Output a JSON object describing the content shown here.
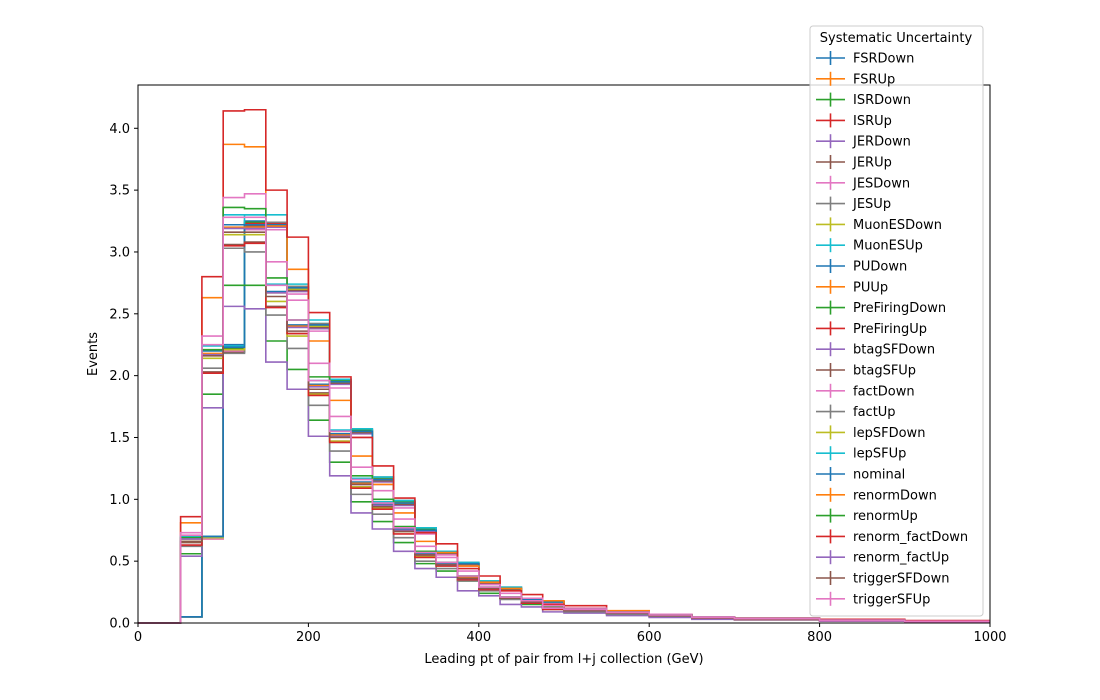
{
  "chart_data": {
    "type": "line",
    "title": "",
    "xlabel": "Leading pt of pair from l+j collection (GeV)",
    "ylabel": "Events",
    "xlim": [
      0,
      1000
    ],
    "ylim": [
      0,
      4.35
    ],
    "x_ticks": [
      0,
      200,
      400,
      600,
      800,
      1000
    ],
    "x_tick_labels": [
      "0",
      "200",
      "400",
      "600",
      "800",
      "1000"
    ],
    "y_ticks": [
      0.0,
      0.5,
      1.0,
      1.5,
      2.0,
      2.5,
      3.0,
      3.5,
      4.0
    ],
    "y_tick_labels": [
      "0.0",
      "0.5",
      "1.0",
      "1.5",
      "2.0",
      "2.5",
      "3.0",
      "3.5",
      "4.0"
    ],
    "grid": false,
    "drawstyle": "steps-histogram",
    "bin_edges": [
      0,
      25,
      50,
      75,
      100,
      125,
      150,
      175,
      200,
      225,
      250,
      275,
      300,
      325,
      350,
      375,
      400,
      425,
      450,
      475,
      500,
      550,
      600,
      650,
      700,
      800,
      900,
      1000
    ],
    "legend": {
      "title": "Systematic Uncertainty",
      "location": "upper right"
    },
    "series": [
      {
        "name": "FSRDown",
        "color": "#1f77b4",
        "values": [
          0,
          0,
          0.05,
          0.7,
          2.25,
          3.25,
          3.22,
          2.72,
          2.42,
          1.96,
          1.56,
          1.17,
          0.98,
          0.76,
          0.57,
          0.48,
          0.33,
          0.28,
          0.19,
          0.17,
          0.11,
          0.09,
          0.065,
          0.045,
          0.035,
          0.02,
          0.01
        ]
      },
      {
        "name": "FSRUp",
        "color": "#ff7f0e",
        "values": [
          0,
          0,
          0.05,
          0.68,
          2.2,
          3.22,
          3.22,
          2.7,
          2.4,
          1.95,
          1.55,
          1.16,
          0.96,
          0.75,
          0.57,
          0.48,
          0.33,
          0.28,
          0.19,
          0.17,
          0.11,
          0.09,
          0.065,
          0.045,
          0.035,
          0.02,
          0.01
        ]
      },
      {
        "name": "ISRDown",
        "color": "#2ca02c",
        "values": [
          0,
          0,
          0.05,
          0.7,
          2.22,
          3.24,
          3.24,
          2.72,
          2.42,
          1.96,
          1.56,
          1.17,
          0.98,
          0.76,
          0.57,
          0.48,
          0.33,
          0.28,
          0.19,
          0.17,
          0.11,
          0.09,
          0.065,
          0.045,
          0.035,
          0.02,
          0.01
        ]
      },
      {
        "name": "ISRUp",
        "color": "#d62728",
        "values": [
          0,
          0,
          0.05,
          0.69,
          2.21,
          3.23,
          3.23,
          2.71,
          2.41,
          1.95,
          1.55,
          1.16,
          0.97,
          0.75,
          0.57,
          0.48,
          0.33,
          0.28,
          0.19,
          0.17,
          0.11,
          0.09,
          0.065,
          0.045,
          0.035,
          0.02,
          0.01
        ]
      },
      {
        "name": "JERDown",
        "color": "#9467bd",
        "values": [
          0,
          0,
          0.05,
          0.69,
          2.2,
          3.2,
          3.2,
          2.68,
          2.38,
          1.93,
          1.53,
          1.14,
          0.95,
          0.74,
          0.56,
          0.47,
          0.32,
          0.27,
          0.18,
          0.16,
          0.1,
          0.085,
          0.06,
          0.045,
          0.035,
          0.02,
          0.01
        ]
      },
      {
        "name": "JERUp",
        "color": "#8c564b",
        "values": [
          0,
          0,
          0.05,
          0.7,
          2.19,
          3.21,
          3.21,
          2.69,
          2.39,
          1.94,
          1.54,
          1.15,
          0.96,
          0.75,
          0.56,
          0.47,
          0.32,
          0.27,
          0.18,
          0.16,
          0.1,
          0.085,
          0.06,
          0.045,
          0.035,
          0.02,
          0.01
        ]
      },
      {
        "name": "JESDown",
        "color": "#e377c2",
        "values": [
          0,
          0,
          0.05,
          0.68,
          2.2,
          3.18,
          3.18,
          2.66,
          2.36,
          1.9,
          1.5,
          1.12,
          0.93,
          0.72,
          0.55,
          0.46,
          0.31,
          0.26,
          0.18,
          0.16,
          0.1,
          0.08,
          0.06,
          0.04,
          0.03,
          0.02,
          0.01
        ]
      },
      {
        "name": "JESUp",
        "color": "#7f7f7f",
        "values": [
          0,
          0,
          0.05,
          0.7,
          2.18,
          3.22,
          3.24,
          2.72,
          2.42,
          1.97,
          1.57,
          1.18,
          0.99,
          0.77,
          0.58,
          0.49,
          0.34,
          0.29,
          0.19,
          0.17,
          0.11,
          0.09,
          0.065,
          0.045,
          0.035,
          0.02,
          0.01
        ]
      },
      {
        "name": "MuonESDown",
        "color": "#bcbd22",
        "values": [
          0,
          0,
          0.05,
          0.69,
          2.21,
          3.22,
          3.22,
          2.7,
          2.4,
          1.95,
          1.55,
          1.16,
          0.97,
          0.75,
          0.57,
          0.48,
          0.33,
          0.28,
          0.19,
          0.17,
          0.11,
          0.09,
          0.065,
          0.045,
          0.035,
          0.02,
          0.01
        ]
      },
      {
        "name": "MuonESUp",
        "color": "#17becf",
        "values": [
          0,
          0,
          0.05,
          0.7,
          2.24,
          3.3,
          3.3,
          2.74,
          2.45,
          1.97,
          1.57,
          1.18,
          0.99,
          0.77,
          0.58,
          0.49,
          0.34,
          0.29,
          0.19,
          0.17,
          0.11,
          0.09,
          0.065,
          0.045,
          0.035,
          0.02,
          0.01
        ]
      },
      {
        "name": "PUDown",
        "color": "#1f77b4",
        "values": [
          0,
          0,
          0.05,
          0.7,
          2.23,
          3.22,
          3.22,
          2.71,
          2.41,
          1.95,
          1.55,
          1.16,
          0.97,
          0.75,
          0.57,
          0.48,
          0.33,
          0.28,
          0.19,
          0.17,
          0.11,
          0.09,
          0.065,
          0.045,
          0.035,
          0.02,
          0.01
        ]
      },
      {
        "name": "PUUp",
        "color": "#ff7f0e",
        "values": [
          0,
          0,
          0.81,
          2.63,
          3.87,
          3.85,
          3.21,
          2.86,
          2.28,
          1.8,
          1.35,
          1.12,
          0.89,
          0.66,
          0.57,
          0.46,
          0.33,
          0.28,
          0.2,
          0.18,
          0.12,
          0.1,
          0.07,
          0.05,
          0.04,
          0.025,
          0.015
        ]
      },
      {
        "name": "PreFiringDown",
        "color": "#2ca02c",
        "values": [
          0,
          0,
          0.56,
          1.85,
          2.73,
          2.73,
          2.28,
          2.05,
          1.64,
          1.3,
          0.98,
          0.82,
          0.65,
          0.48,
          0.42,
          0.34,
          0.24,
          0.21,
          0.15,
          0.13,
          0.09,
          0.07,
          0.05,
          0.04,
          0.03,
          0.02,
          0.01
        ]
      },
      {
        "name": "PreFiringUp",
        "color": "#d62728",
        "values": [
          0,
          0,
          0.86,
          2.8,
          4.14,
          4.15,
          3.5,
          3.12,
          2.51,
          1.99,
          1.5,
          1.27,
          1.01,
          0.73,
          0.64,
          0.44,
          0.38,
          0.26,
          0.23,
          0.15,
          0.14,
          0.09,
          0.07,
          0.05,
          0.04,
          0.03,
          0.02
        ]
      },
      {
        "name": "btagSFDown",
        "color": "#9467bd",
        "values": [
          0,
          0,
          0.54,
          1.74,
          2.56,
          2.54,
          2.11,
          1.89,
          1.51,
          1.19,
          0.89,
          0.76,
          0.58,
          0.44,
          0.37,
          0.26,
          0.22,
          0.15,
          0.13,
          0.09,
          0.08,
          0.06,
          0.045,
          0.03,
          0.025,
          0.015,
          0.01
        ]
      },
      {
        "name": "btagSFUp",
        "color": "#8c564b",
        "values": [
          0,
          0,
          0.65,
          2.03,
          3.06,
          3.08,
          2.56,
          2.34,
          1.86,
          1.47,
          1.1,
          0.93,
          0.74,
          0.54,
          0.47,
          0.36,
          0.28,
          0.2,
          0.17,
          0.12,
          0.1,
          0.08,
          0.06,
          0.04,
          0.03,
          0.02,
          0.01
        ]
      },
      {
        "name": "factDown",
        "color": "#e377c2",
        "values": [
          0,
          0,
          0.73,
          2.32,
          3.44,
          3.47,
          2.92,
          2.61,
          2.1,
          1.67,
          1.26,
          1.07,
          0.84,
          0.62,
          0.53,
          0.42,
          0.31,
          0.24,
          0.2,
          0.14,
          0.12,
          0.09,
          0.07,
          0.05,
          0.04,
          0.025,
          0.015
        ]
      },
      {
        "name": "factUp",
        "color": "#7f7f7f",
        "values": [
          0,
          0,
          0.62,
          2.06,
          3.03,
          3.0,
          2.49,
          2.22,
          1.76,
          1.39,
          1.04,
          0.88,
          0.69,
          0.5,
          0.44,
          0.34,
          0.26,
          0.19,
          0.16,
          0.11,
          0.09,
          0.07,
          0.055,
          0.04,
          0.03,
          0.02,
          0.01
        ]
      },
      {
        "name": "lepSFDown",
        "color": "#bcbd22",
        "values": [
          0,
          0,
          0.66,
          2.14,
          3.14,
          3.14,
          2.6,
          2.32,
          1.85,
          1.47,
          1.1,
          0.93,
          0.74,
          0.54,
          0.47,
          0.36,
          0.28,
          0.2,
          0.17,
          0.12,
          0.1,
          0.08,
          0.06,
          0.04,
          0.03,
          0.02,
          0.01
        ]
      },
      {
        "name": "lepSFUp",
        "color": "#17becf",
        "values": [
          0,
          0,
          0.7,
          2.24,
          3.3,
          3.3,
          2.74,
          2.45,
          1.96,
          1.56,
          1.17,
          0.98,
          0.77,
          0.57,
          0.49,
          0.38,
          0.29,
          0.21,
          0.18,
          0.12,
          0.11,
          0.085,
          0.065,
          0.045,
          0.035,
          0.02,
          0.01
        ]
      },
      {
        "name": "nominal",
        "color": "#1f77b4",
        "values": [
          0,
          0,
          0.68,
          2.2,
          3.22,
          3.22,
          2.68,
          2.41,
          1.93,
          1.53,
          1.14,
          0.96,
          0.76,
          0.56,
          0.48,
          0.37,
          0.28,
          0.2,
          0.17,
          0.12,
          0.1,
          0.08,
          0.06,
          0.04,
          0.03,
          0.02,
          0.01
        ]
      },
      {
        "name": "renormDown",
        "color": "#ff7f0e",
        "values": [
          0,
          0,
          0.68,
          2.18,
          3.2,
          3.2,
          2.67,
          2.4,
          1.92,
          1.52,
          1.13,
          0.95,
          0.75,
          0.55,
          0.47,
          0.37,
          0.28,
          0.2,
          0.17,
          0.12,
          0.1,
          0.08,
          0.06,
          0.04,
          0.03,
          0.02,
          0.01
        ]
      },
      {
        "name": "renormUp",
        "color": "#2ca02c",
        "values": [
          0,
          0,
          0.69,
          2.21,
          3.36,
          3.35,
          2.79,
          2.45,
          1.99,
          1.55,
          1.19,
          1.0,
          0.78,
          0.58,
          0.49,
          0.38,
          0.29,
          0.21,
          0.18,
          0.12,
          0.11,
          0.085,
          0.065,
          0.045,
          0.035,
          0.02,
          0.01
        ]
      },
      {
        "name": "renorm_factDown",
        "color": "#d62728",
        "values": [
          0,
          0,
          0.63,
          2.02,
          3.05,
          3.07,
          2.55,
          2.34,
          1.84,
          1.46,
          1.09,
          0.92,
          0.72,
          0.53,
          0.46,
          0.35,
          0.27,
          0.2,
          0.16,
          0.11,
          0.1,
          0.08,
          0.06,
          0.04,
          0.03,
          0.02,
          0.01
        ]
      },
      {
        "name": "renorm_factUp",
        "color": "#9467bd",
        "values": [
          0,
          0,
          0.68,
          2.17,
          3.19,
          3.19,
          2.67,
          2.39,
          1.91,
          1.51,
          1.12,
          0.95,
          0.75,
          0.55,
          0.47,
          0.36,
          0.28,
          0.2,
          0.17,
          0.12,
          0.1,
          0.08,
          0.06,
          0.04,
          0.03,
          0.02,
          0.01
        ]
      },
      {
        "name": "triggerSFDown",
        "color": "#8c564b",
        "values": [
          0,
          0,
          0.66,
          2.16,
          3.16,
          3.16,
          2.64,
          2.36,
          1.89,
          1.5,
          1.12,
          0.94,
          0.74,
          0.55,
          0.47,
          0.36,
          0.28,
          0.2,
          0.17,
          0.12,
          0.1,
          0.08,
          0.06,
          0.04,
          0.03,
          0.02,
          0.01
        ]
      },
      {
        "name": "triggerSFUp",
        "color": "#e377c2",
        "values": [
          0,
          0,
          0.71,
          2.25,
          3.28,
          3.28,
          2.73,
          2.45,
          1.96,
          1.55,
          1.16,
          0.97,
          0.77,
          0.57,
          0.49,
          0.38,
          0.29,
          0.21,
          0.18,
          0.12,
          0.11,
          0.085,
          0.065,
          0.045,
          0.035,
          0.02,
          0.01
        ]
      }
    ]
  }
}
